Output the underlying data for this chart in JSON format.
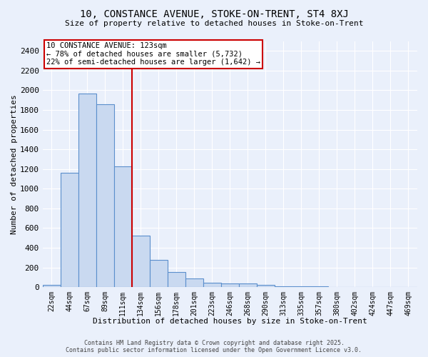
{
  "title_line1": "10, CONSTANCE AVENUE, STOKE-ON-TRENT, ST4 8XJ",
  "title_line2": "Size of property relative to detached houses in Stoke-on-Trent",
  "xlabel": "Distribution of detached houses by size in Stoke-on-Trent",
  "ylabel": "Number of detached properties",
  "categories": [
    "22sqm",
    "44sqm",
    "67sqm",
    "89sqm",
    "111sqm",
    "134sqm",
    "156sqm",
    "178sqm",
    "201sqm",
    "223sqm",
    "246sqm",
    "268sqm",
    "290sqm",
    "313sqm",
    "335sqm",
    "357sqm",
    "380sqm",
    "402sqm",
    "424sqm",
    "447sqm",
    "469sqm"
  ],
  "values": [
    25,
    1160,
    1970,
    1860,
    1230,
    520,
    275,
    150,
    90,
    45,
    40,
    35,
    20,
    10,
    5,
    5,
    3,
    3,
    2,
    2,
    2
  ],
  "bar_color": "#c9d9f0",
  "bar_edge_color": "#5b8fcc",
  "annotation_text": "10 CONSTANCE AVENUE: 123sqm\n← 78% of detached houses are smaller (5,732)\n22% of semi-detached houses are larger (1,642) →",
  "annotation_box_color": "white",
  "annotation_box_edge": "#cc0000",
  "vline_color": "#cc0000",
  "ylim": [
    0,
    2500
  ],
  "yticks": [
    0,
    200,
    400,
    600,
    800,
    1000,
    1200,
    1400,
    1600,
    1800,
    2000,
    2200,
    2400
  ],
  "bg_color": "#eaf0fb",
  "grid_color": "white",
  "footer_line1": "Contains HM Land Registry data © Crown copyright and database right 2025.",
  "footer_line2": "Contains public sector information licensed under the Open Government Licence v3.0."
}
